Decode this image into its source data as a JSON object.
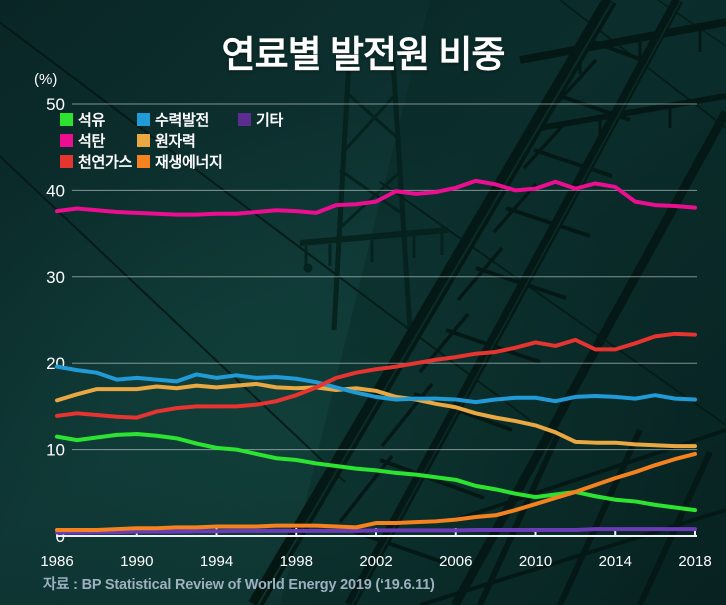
{
  "title": "연료별 발전원 비중",
  "unit_label": "(%)",
  "source": "자료 : BP Statistical Review of World Energy 2019 (‘19.6.11)",
  "colors": {
    "oil": "#2de332",
    "hydro": "#209bd8",
    "other": "#6a3cb5",
    "coal": "#ec0e90",
    "nuclear": "#eaa843",
    "gas": "#e63430",
    "renewables": "#f5821f",
    "background": "#0b2a29",
    "gridline": "#dee8ea",
    "source_text": "#9db0bf"
  },
  "legend": {
    "items": [
      {
        "label": "석유",
        "color": "#2de332"
      },
      {
        "label": "수력발전",
        "color": "#209bd8"
      },
      {
        "label": "기타",
        "color": "#5b2d91"
      },
      {
        "label": "석탄",
        "color": "#ec0e90"
      },
      {
        "label": "원자력",
        "color": "#eaa843"
      },
      {
        "label": "천연가스",
        "color": "#e63430"
      },
      {
        "label": "재생에너지",
        "color": "#f5821f"
      }
    ]
  },
  "chart_data": {
    "type": "line",
    "title": "연료별 발전원 비중",
    "ylabel": "(%)",
    "xlabel": "",
    "grid": true,
    "legend_position": "top-left",
    "ylim": [
      0,
      50
    ],
    "yticks": [
      0,
      10,
      20,
      30,
      40,
      50
    ],
    "xticks": [
      1986,
      1990,
      1994,
      1998,
      2002,
      2006,
      2010,
      2014,
      2018
    ],
    "x": [
      1986,
      1987,
      1988,
      1989,
      1990,
      1991,
      1992,
      1993,
      1994,
      1995,
      1996,
      1997,
      1998,
      1999,
      2000,
      2001,
      2002,
      2003,
      2004,
      2005,
      2006,
      2007,
      2008,
      2009,
      2010,
      2011,
      2012,
      2013,
      2014,
      2015,
      2016,
      2017,
      2018
    ],
    "series": [
      {
        "key": "nuclear",
        "name": "원자력",
        "color": "#eaa843",
        "values": [
          15.7,
          16.4,
          17.0,
          17.0,
          17.0,
          17.3,
          17.1,
          17.4,
          17.2,
          17.4,
          17.6,
          17.2,
          17.1,
          17.2,
          16.9,
          17.1,
          16.8,
          16.1,
          15.8,
          15.3,
          14.9,
          14.2,
          13.7,
          13.3,
          12.8,
          12.0,
          10.9,
          10.8,
          10.8,
          10.6,
          10.5,
          10.4,
          10.4
        ]
      },
      {
        "key": "hydro",
        "name": "수력발전",
        "color": "#209bd8",
        "values": [
          19.6,
          19.2,
          18.9,
          18.1,
          18.3,
          18.1,
          17.9,
          18.7,
          18.3,
          18.6,
          18.3,
          18.4,
          18.2,
          17.8,
          17.2,
          16.6,
          16.1,
          15.8,
          15.9,
          15.9,
          15.8,
          15.5,
          15.8,
          16.0,
          16.0,
          15.6,
          16.1,
          16.2,
          16.1,
          15.9,
          16.3,
          15.9,
          15.8
        ]
      },
      {
        "key": "oil",
        "name": "석유",
        "color": "#2de332",
        "values": [
          11.5,
          11.1,
          11.4,
          11.7,
          11.8,
          11.6,
          11.3,
          10.7,
          10.2,
          10.0,
          9.5,
          9.0,
          8.8,
          8.4,
          8.1,
          7.8,
          7.6,
          7.3,
          7.1,
          6.8,
          6.5,
          5.8,
          5.4,
          4.9,
          4.5,
          4.8,
          5.1,
          4.6,
          4.2,
          4.0,
          3.6,
          3.3,
          3.0
        ]
      },
      {
        "key": "gas",
        "name": "천연가스",
        "color": "#e63430",
        "values": [
          13.9,
          14.2,
          14.0,
          13.8,
          13.7,
          14.4,
          14.8,
          15.0,
          15.0,
          15.0,
          15.2,
          15.6,
          16.3,
          17.2,
          18.3,
          18.9,
          19.3,
          19.6,
          20.0,
          20.4,
          20.7,
          21.1,
          21.3,
          21.8,
          22.4,
          22.0,
          22.7,
          21.6,
          21.6,
          22.3,
          23.1,
          23.4,
          23.3
        ]
      },
      {
        "key": "coal",
        "name": "석탄",
        "color": "#ec0e90",
        "values": [
          37.6,
          37.9,
          37.7,
          37.5,
          37.4,
          37.3,
          37.2,
          37.2,
          37.3,
          37.3,
          37.5,
          37.7,
          37.6,
          37.4,
          38.3,
          38.4,
          38.7,
          39.9,
          39.6,
          39.8,
          40.3,
          41.1,
          40.7,
          40.0,
          40.2,
          41.0,
          40.2,
          40.8,
          40.4,
          38.7,
          38.3,
          38.2,
          38.0
        ]
      },
      {
        "key": "other",
        "name": "기타",
        "color": "#6a3cb5",
        "values": [
          0.4,
          0.4,
          0.45,
          0.45,
          0.5,
          0.5,
          0.5,
          0.55,
          0.55,
          0.6,
          0.6,
          0.6,
          0.6,
          0.6,
          0.6,
          0.6,
          0.65,
          0.65,
          0.65,
          0.65,
          0.65,
          0.7,
          0.7,
          0.7,
          0.7,
          0.7,
          0.7,
          0.8,
          0.8,
          0.8,
          0.8,
          0.8,
          0.8
        ]
      },
      {
        "key": "renewables",
        "name": "재생에너지",
        "color": "#f5821f",
        "values": [
          0.7,
          0.7,
          0.7,
          0.8,
          0.9,
          0.9,
          1.0,
          1.0,
          1.1,
          1.1,
          1.1,
          1.2,
          1.2,
          1.2,
          1.1,
          1.0,
          1.5,
          1.5,
          1.6,
          1.7,
          1.9,
          2.2,
          2.4,
          3.0,
          3.7,
          4.4,
          5.1,
          5.9,
          6.7,
          7.4,
          8.2,
          8.9,
          9.5
        ]
      }
    ]
  }
}
